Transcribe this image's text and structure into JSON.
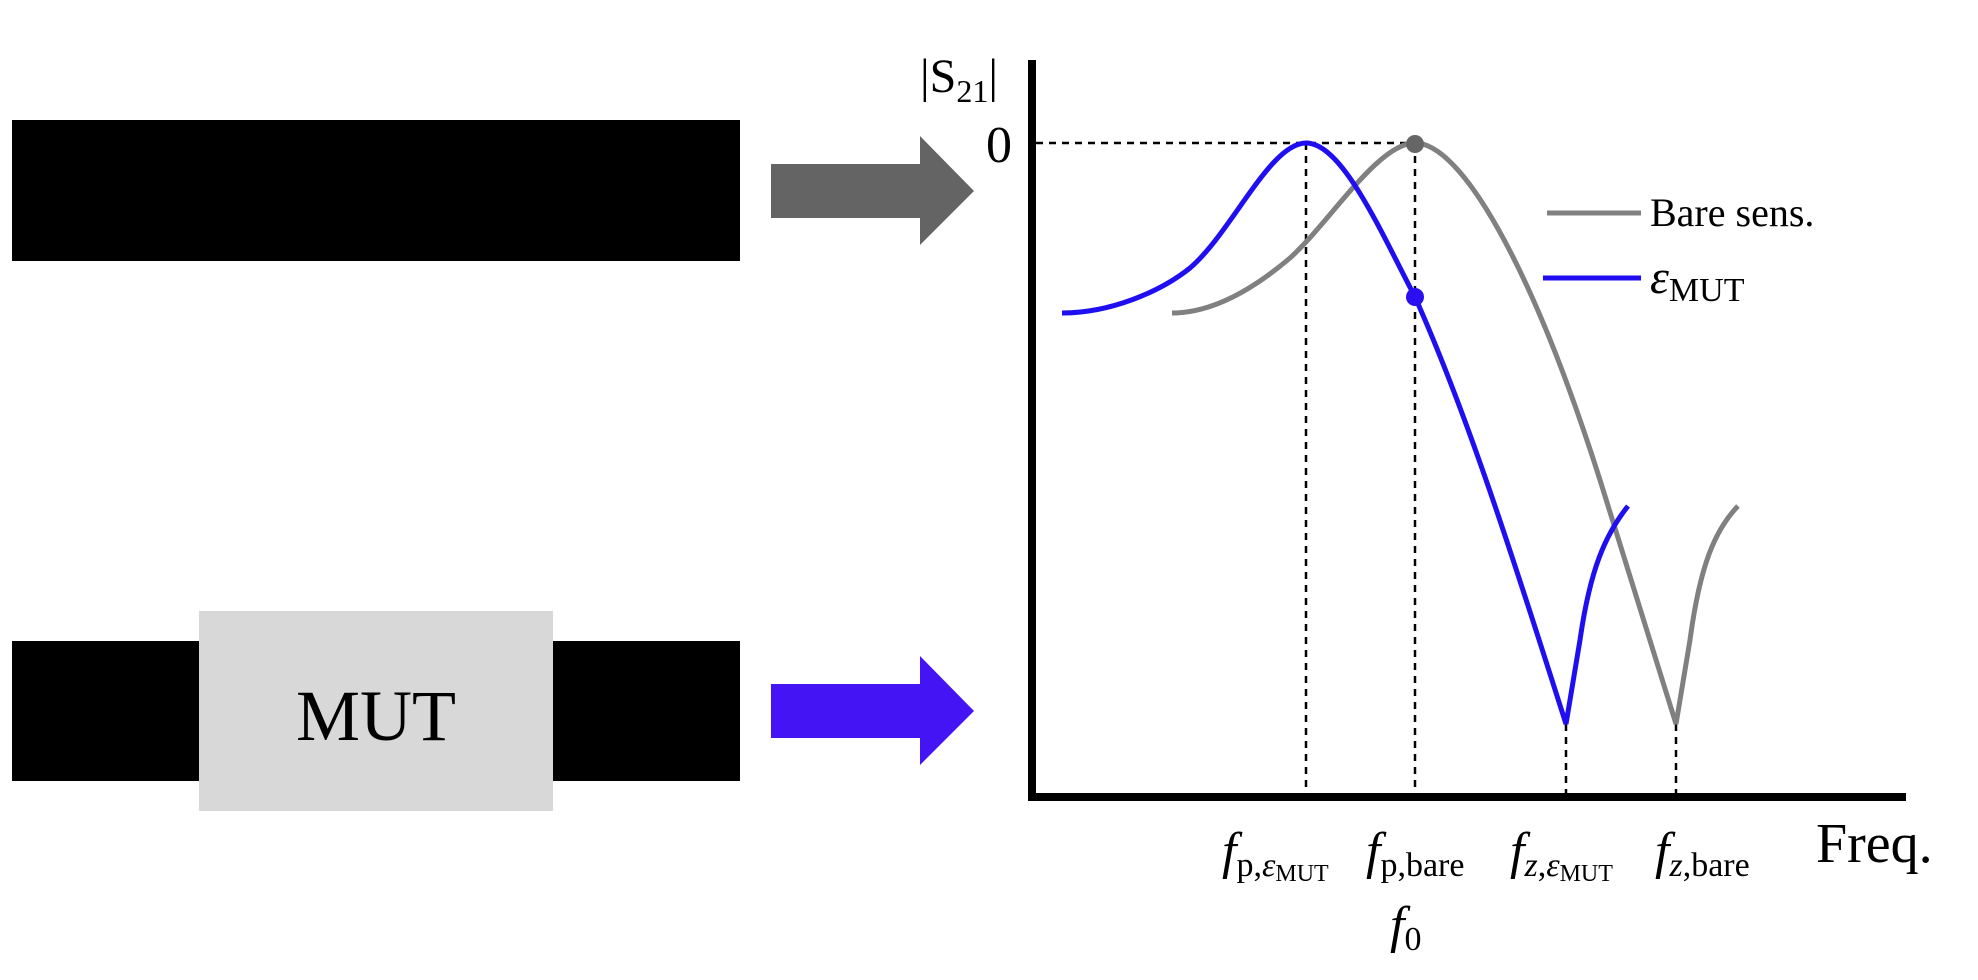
{
  "left": {
    "mut_label": "MUT"
  },
  "colors": {
    "bare": "#808080",
    "mut": "#1f0ff0",
    "arrow_bare": "#646464",
    "arrow_mut": "#4414f5",
    "mut_box": "#d8d8d8",
    "line": "#000000"
  },
  "plot": {
    "ylabel_main": "|S",
    "ylabel_sub": "21",
    "ylabel_end": "|",
    "y_tick": "0",
    "xlabel": "Freq.",
    "legend": [
      {
        "label": "Bare sens.",
        "color": "#808080"
      },
      {
        "label_main": "ε",
        "label_sub": "MUT",
        "color": "#1f0ff0"
      }
    ],
    "x_ticks": [
      {
        "f": "f",
        "sub": "p,",
        "sub_eps": "ε",
        "sub_eps_sub": "MUT"
      },
      {
        "f": "f",
        "sub": "p,bare"
      },
      {
        "f": "f",
        "sub_italic": "z",
        "sub": ",",
        "sub_eps": "ε",
        "sub_eps_sub": "MUT"
      },
      {
        "f": "f",
        "sub_italic": "z",
        "sub": ",bare"
      }
    ],
    "f0": {
      "f": "f",
      "sub": "0"
    }
  }
}
